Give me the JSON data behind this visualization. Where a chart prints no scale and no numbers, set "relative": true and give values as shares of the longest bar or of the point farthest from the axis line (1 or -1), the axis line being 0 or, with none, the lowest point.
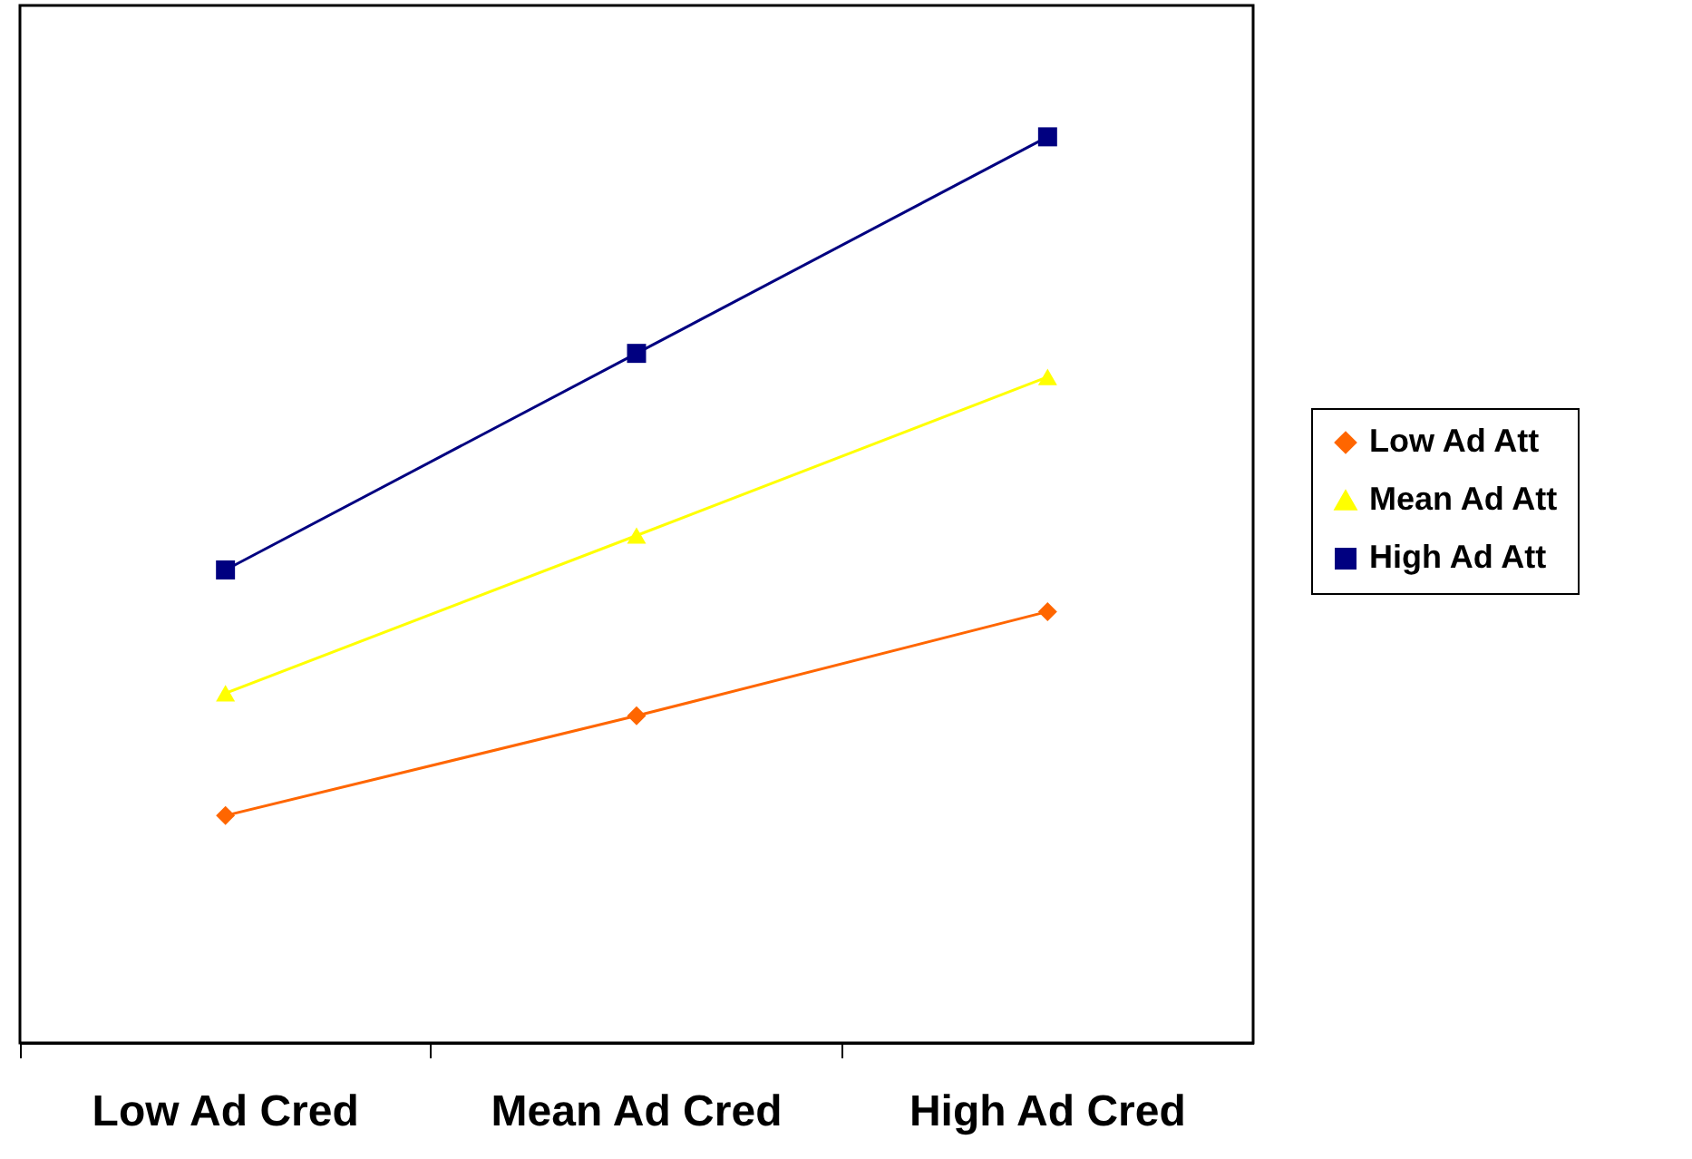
{
  "chart_data": {
    "type": "line",
    "relative": true,
    "categories": [
      "Low Ad Cred",
      "Mean Ad Cred",
      "High Ad Cred"
    ],
    "series": [
      {
        "name": "Low Ad Att",
        "color": "#ff6600",
        "marker": "diamond",
        "values": [
          0.251,
          0.361,
          0.476
        ]
      },
      {
        "name": "Mean Ad Att",
        "color": "#ffff00",
        "marker": "triangle",
        "values": [
          0.386,
          0.56,
          0.735
        ]
      },
      {
        "name": "High Ad Att",
        "color": "#000080",
        "marker": "square",
        "values": [
          0.522,
          0.761,
          1
        ]
      }
    ],
    "legend": "right",
    "grid": false,
    "line_style": "solid"
  }
}
